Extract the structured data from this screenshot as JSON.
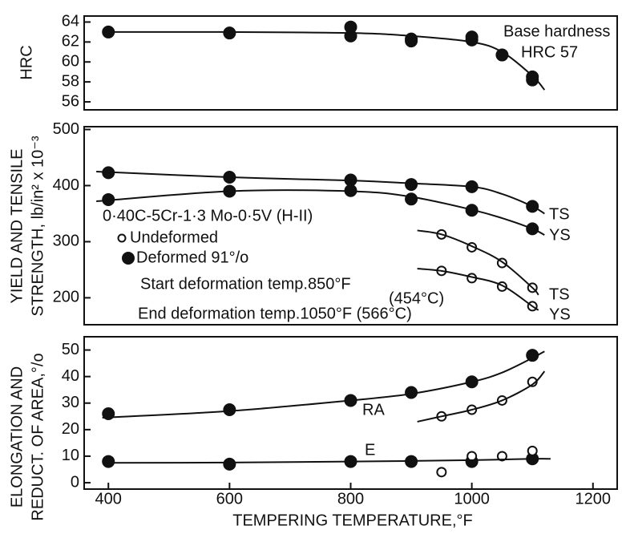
{
  "chart_data": [
    {
      "type": "scatter",
      "ylabel": "HRC",
      "xlim": [
        360,
        1240
      ],
      "ylim": [
        55.2,
        64.6
      ],
      "yticks": [
        56,
        58,
        60,
        62,
        64
      ],
      "series": [
        {
          "marker": "filled",
          "x": [
            400,
            600,
            800,
            800,
            900,
            900,
            1000,
            1000,
            1050,
            1100,
            1100
          ],
          "values": [
            63,
            62.9,
            63.5,
            62.6,
            62.3,
            62.1,
            62.5,
            62.2,
            60.7,
            58.5,
            58.2
          ]
        },
        {
          "marker": "none",
          "x": [
            400,
            600,
            800,
            900,
            1000,
            1050,
            1100,
            1120
          ],
          "values": [
            63,
            63,
            62.9,
            62.6,
            62,
            61,
            58.6,
            57.2
          ]
        }
      ],
      "annotations": [
        "Base hardness",
        "HRC 57"
      ]
    },
    {
      "type": "scatter",
      "ylabel": [
        "YIELD AND TENSILE",
        "STRENGTH, lb/in² x 10⁻³"
      ],
      "xlim": [
        360,
        1240
      ],
      "ylim": [
        152,
        505
      ],
      "yticks": [
        200,
        300,
        400,
        500
      ],
      "series": [
        {
          "marker": "filled",
          "x": [
            400,
            600,
            800,
            900,
            1000,
            1100
          ],
          "values": [
            423,
            415,
            410,
            402,
            398,
            363
          ]
        },
        {
          "marker": "filled",
          "x": [
            400,
            600,
            800,
            900,
            1000,
            1100
          ],
          "values": [
            375,
            390,
            391,
            376,
            356,
            323
          ]
        },
        {
          "marker": "open",
          "x": [
            950,
            1000,
            1050,
            1100
          ],
          "values": [
            313,
            290,
            262,
            218
          ]
        },
        {
          "marker": "open",
          "x": [
            950,
            1000,
            1050,
            1100
          ],
          "values": [
            248,
            235,
            220,
            185
          ]
        },
        {
          "marker": "none",
          "x": [
            380,
            600,
            800,
            900,
            1000,
            1050,
            1100,
            1120
          ],
          "values": [
            425,
            415,
            409,
            404,
            398,
            385,
            363,
            350
          ]
        },
        {
          "marker": "none",
          "x": [
            380,
            600,
            800,
            900,
            1000,
            1050,
            1100,
            1120
          ],
          "values": [
            372,
            390,
            390,
            380,
            357,
            342,
            323,
            312
          ]
        },
        {
          "marker": "none",
          "x": [
            910,
            950,
            1000,
            1050,
            1100,
            1110
          ],
          "values": [
            320,
            313,
            292,
            264,
            218,
            205
          ]
        },
        {
          "marker": "none",
          "x": [
            910,
            950,
            1000,
            1050,
            1100,
            1110
          ],
          "values": [
            252,
            248,
            237,
            222,
            185,
            178
          ]
        }
      ],
      "legend": [
        {
          "label": "Undeformed",
          "marker": "open"
        },
        {
          "label": "Deformed 91°/o",
          "marker": "filled"
        }
      ],
      "annotations": [
        "TS",
        "YS",
        "0·40C-5Cr-1·3 Mo-0·5V (H-II)",
        "Start deformation temp.850°F",
        "(454°C)",
        "End deformation temp.1050°F (566°C)",
        "TS",
        "YS"
      ]
    },
    {
      "type": "scatter",
      "ylabel": [
        "ELONGATION AND",
        "REDUCT. OF AREA,°/o"
      ],
      "xlabel": "TEMPERING TEMPERATURE,°F",
      "xlim": [
        360,
        1240
      ],
      "ylim": [
        -2.4,
        55
      ],
      "yticks": [
        0,
        10,
        20,
        30,
        40,
        50
      ],
      "xticks": [
        400,
        600,
        800,
        1000,
        1200
      ],
      "series": [
        {
          "marker": "filled",
          "x": [
            400,
            600,
            800,
            900,
            1000,
            1100
          ],
          "values": [
            26,
            27.5,
            31,
            34,
            38,
            48
          ]
        },
        {
          "marker": "open",
          "x": [
            950,
            1000,
            1050,
            1100
          ],
          "values": [
            25,
            27.5,
            31,
            38
          ]
        },
        {
          "marker": "filled",
          "x": [
            400,
            600,
            800,
            900,
            1000,
            1100
          ],
          "values": [
            8,
            7,
            8,
            8,
            8,
            9
          ]
        },
        {
          "marker": "open",
          "x": [
            950,
            1000,
            1050,
            1100
          ],
          "values": [
            4,
            10,
            10,
            12
          ]
        },
        {
          "marker": "none",
          "x": [
            390,
            600,
            800,
            900,
            1000,
            1050,
            1100,
            1120
          ],
          "values": [
            24.5,
            27,
            31,
            33.5,
            38,
            41.5,
            47,
            49.5
          ]
        },
        {
          "marker": "none",
          "x": [
            910,
            950,
            1000,
            1050,
            1100,
            1120
          ],
          "values": [
            23,
            25,
            27.5,
            31,
            37,
            42
          ]
        },
        {
          "marker": "none",
          "x": [
            390,
            600,
            800,
            900,
            1000,
            1100,
            1130
          ],
          "values": [
            7.5,
            7.6,
            8,
            8.2,
            8.5,
            9,
            9
          ]
        }
      ],
      "annotations": [
        "RA",
        "E"
      ]
    }
  ]
}
